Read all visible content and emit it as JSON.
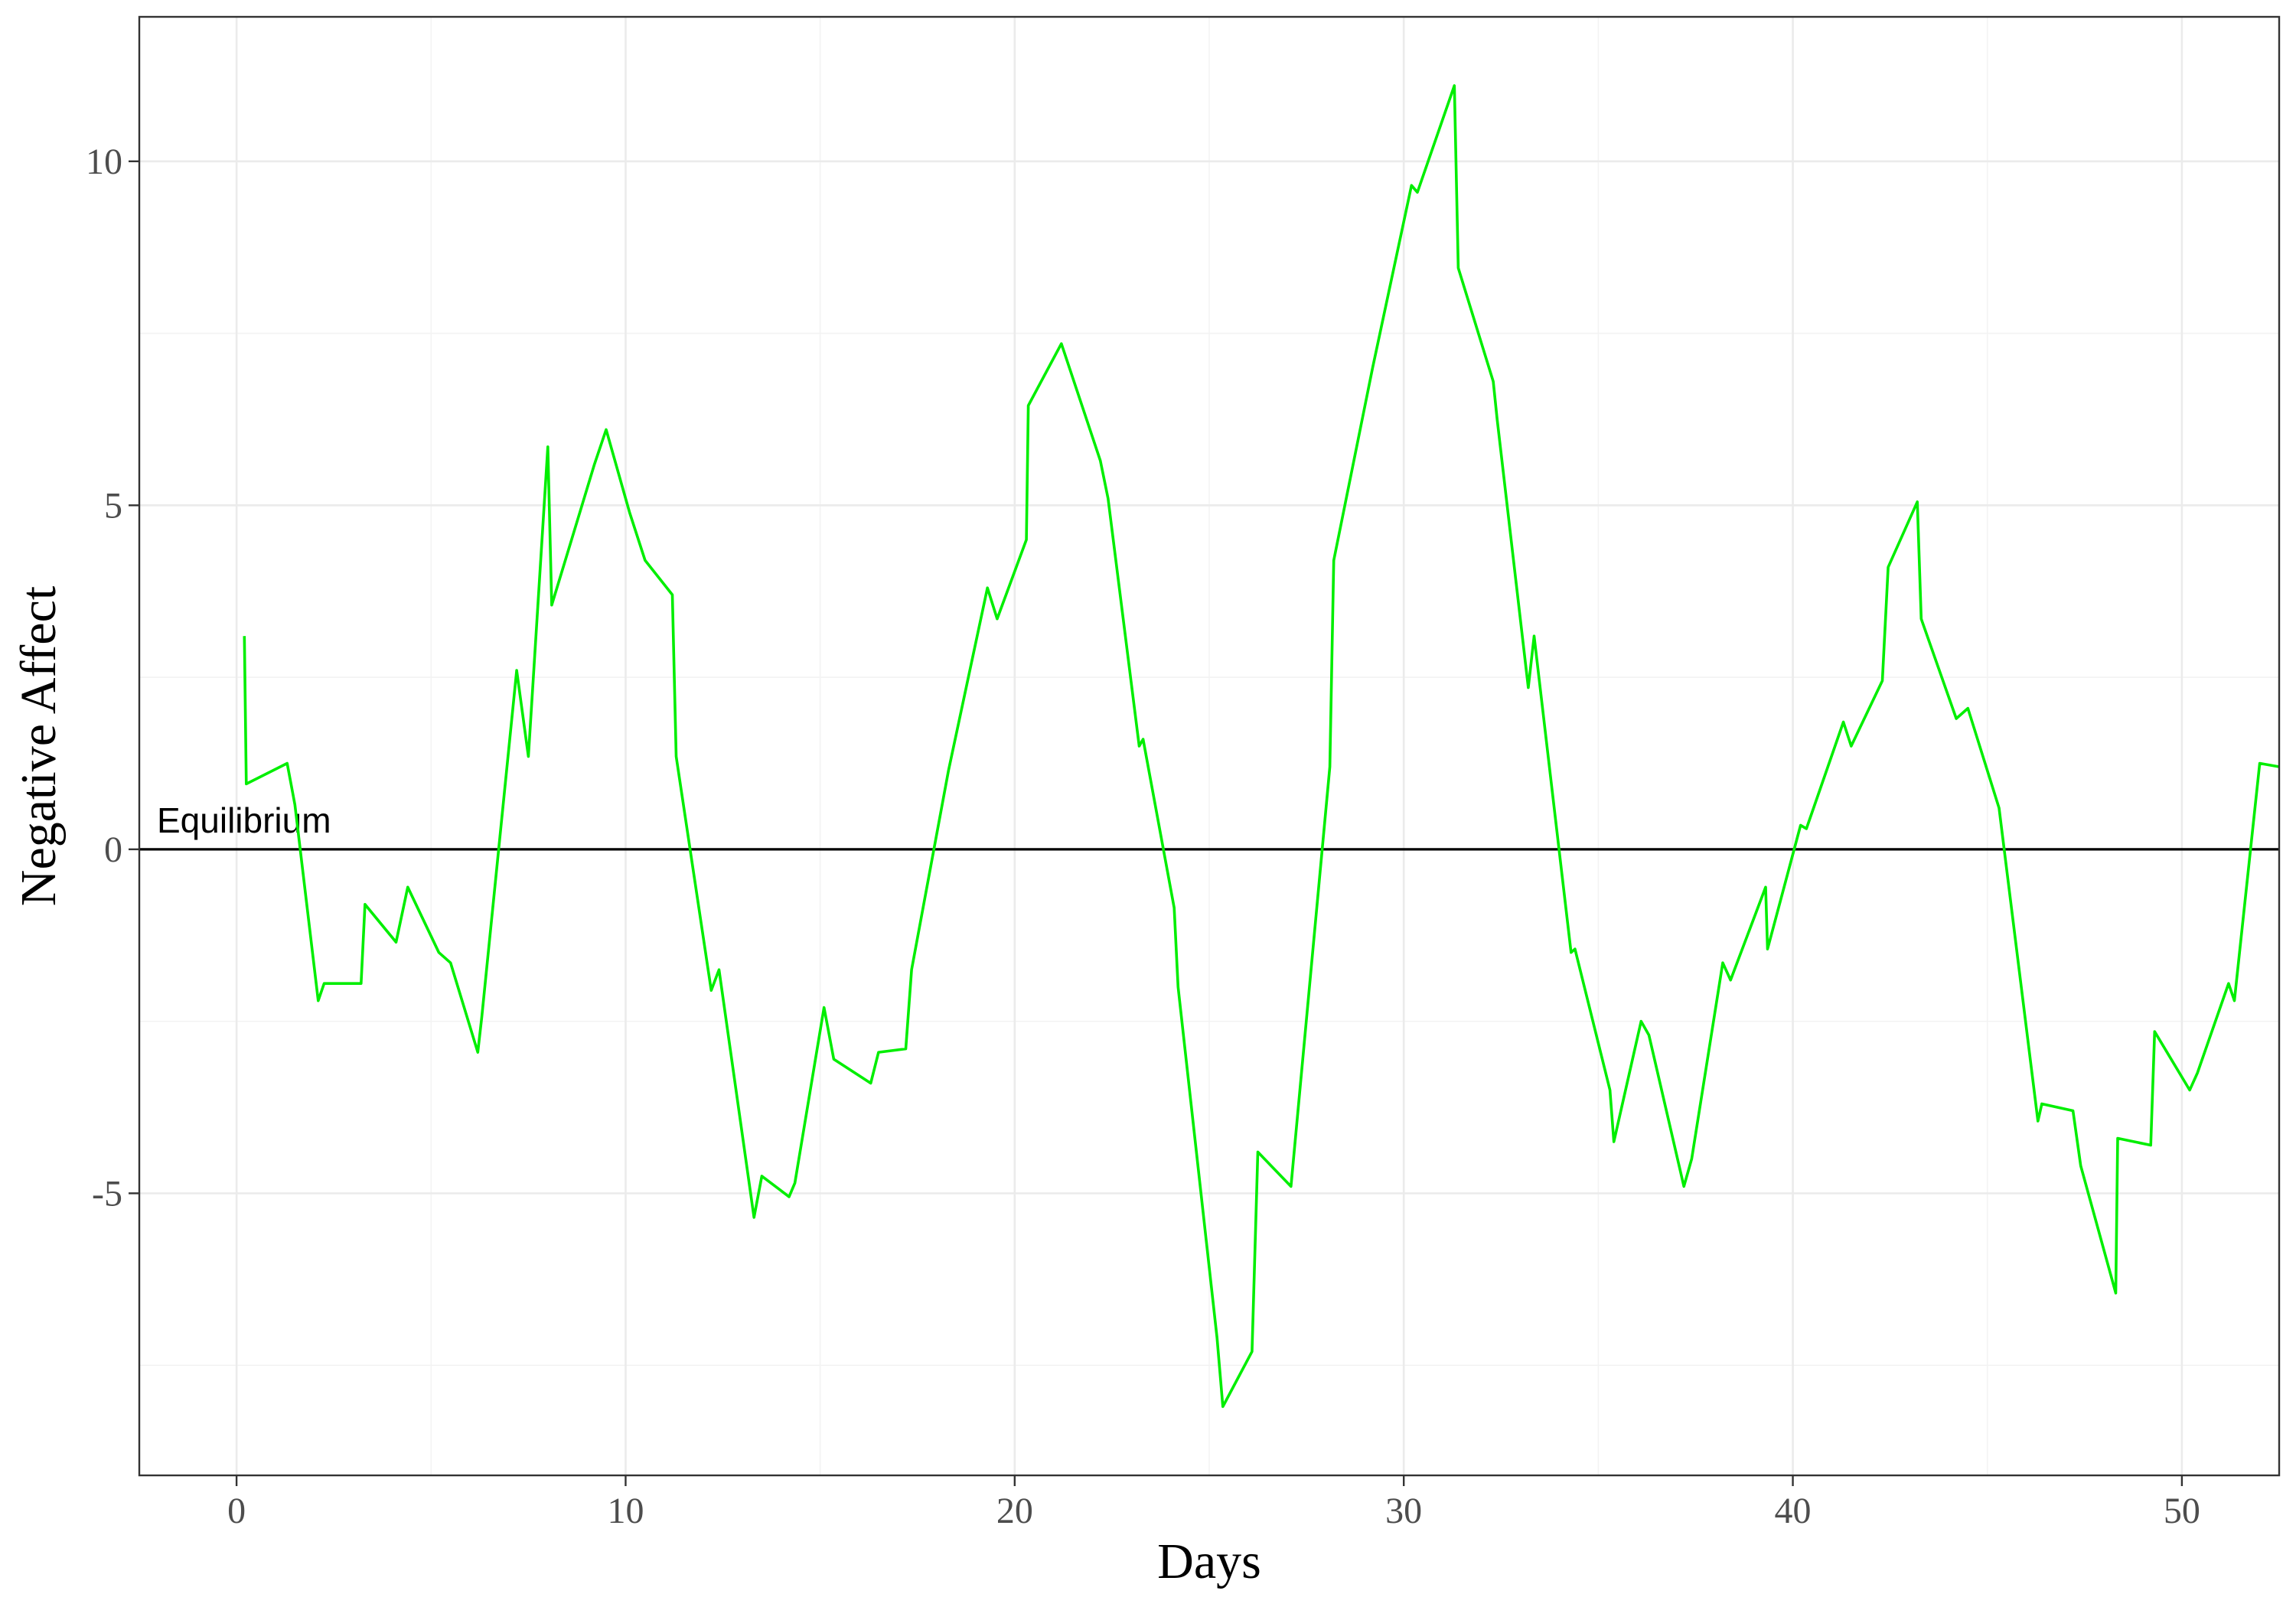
{
  "chart_data": {
    "type": "line",
    "title": "",
    "xlabel": "Days",
    "ylabel": "Negative Affect",
    "xlim": [
      -2.5,
      52.5
    ],
    "ylim": [
      -9.1,
      12.1
    ],
    "x_ticks": [
      0,
      10,
      20,
      30,
      40,
      50
    ],
    "y_ticks": [
      -5,
      0,
      5,
      10
    ],
    "x_tick_labels": [
      "0",
      "10",
      "20",
      "30",
      "40",
      "50"
    ],
    "y_tick_labels": [
      "-5",
      "0",
      "5",
      "10"
    ],
    "grid": true,
    "legend": "none",
    "colors": {
      "series": "#00ee00",
      "reference": "#000000",
      "panel_border": "#333333"
    },
    "reference_line": {
      "y": 0,
      "label": "Equilibrium"
    },
    "series": [
      {
        "x": [
          0.2,
          0.25,
          1.3,
          1.5,
          2.1,
          2.25,
          3.2,
          3.3,
          4.1,
          4.4,
          5.2,
          5.5,
          6.2,
          6.3,
          7.2,
          7.5,
          8.0,
          8.1,
          9.2,
          9.5,
          10.1,
          10.5,
          11.2,
          11.3,
          12.2,
          12.4,
          13.3,
          13.5,
          14.2,
          14.35,
          15.1,
          15.35,
          16.3,
          16.5,
          17.2,
          17.35,
          18.3,
          19.3,
          19.55,
          20.3,
          20.35,
          21.2,
          22.2,
          22.4,
          23.2,
          23.3,
          24.1,
          24.2,
          25.2,
          25.35,
          26.1,
          26.25,
          27.1,
          28.1,
          28.2,
          29.2,
          30.2,
          30.35,
          31.3,
          31.4,
          32.3,
          32.4,
          33.2,
          33.35,
          34.3,
          34.4,
          35.3,
          35.4,
          36.1,
          36.3,
          37.2,
          37.4,
          38.2,
          38.4,
          39.3,
          39.35,
          40.2,
          40.35,
          41.3,
          41.5,
          42.3,
          42.45,
          43.2,
          43.3,
          44.2,
          44.5,
          45.3,
          46.3,
          46.4,
          47.2,
          47.4,
          48.3,
          48.35,
          49.2,
          49.3,
          50.2,
          50.4,
          51.2,
          51.35,
          52.0,
          52.5
        ],
        "y": [
          3.1,
          0.95,
          1.25,
          0.65,
          -2.2,
          -1.95,
          -1.95,
          -0.8,
          -1.35,
          -0.55,
          -1.5,
          -1.65,
          -2.95,
          -2.45,
          2.6,
          1.35,
          5.85,
          3.55,
          5.6,
          6.1,
          4.9,
          4.2,
          3.7,
          1.35,
          -2.05,
          -1.75,
          -5.35,
          -4.75,
          -5.05,
          -4.85,
          -2.3,
          -3.05,
          -3.4,
          -2.95,
          -2.9,
          -1.75,
          1.15,
          3.8,
          3.35,
          4.5,
          6.45,
          7.35,
          5.65,
          5.1,
          1.5,
          1.6,
          -0.85,
          -2.0,
          -7.1,
          -8.1,
          -7.3,
          -4.4,
          -4.9,
          1.2,
          4.2,
          7.0,
          9.65,
          9.55,
          11.1,
          8.45,
          6.8,
          6.25,
          2.35,
          3.1,
          -1.5,
          -1.45,
          -3.5,
          -4.25,
          -2.5,
          -2.7,
          -4.9,
          -4.5,
          -1.65,
          -1.9,
          -0.55,
          -1.45,
          0.35,
          0.3,
          1.85,
          1.5,
          2.45,
          4.1,
          5.05,
          3.35,
          1.9,
          2.05,
          0.6,
          -3.95,
          -3.7,
          -3.8,
          -4.6,
          -6.45,
          -4.2,
          -4.3,
          -2.65,
          -3.5,
          -3.25,
          -1.95,
          -2.2,
          1.25,
          1.2
        ]
      }
    ]
  }
}
